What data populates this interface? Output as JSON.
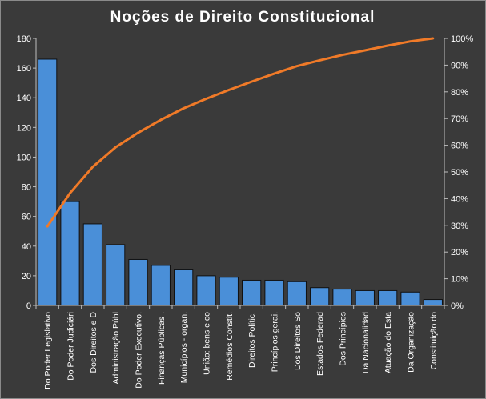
{
  "chart_data": {
    "type": "bar",
    "title": "Noções de Direito Constitucional",
    "xlabel": "",
    "ylabel": "",
    "ylim": [
      0,
      180
    ],
    "y_ticks": [
      0,
      20,
      40,
      60,
      80,
      100,
      120,
      140,
      160,
      180
    ],
    "y2lim": [
      0,
      100
    ],
    "y2_ticks": [
      "0%",
      "10%",
      "20%",
      "30%",
      "40%",
      "50%",
      "60%",
      "70%",
      "80%",
      "90%",
      "100%"
    ],
    "grid": false,
    "legend": "none",
    "categories": [
      "Do Poder Legislativo",
      "Do Poder Judiciári",
      "Dos Direitos e D",
      "Administração Públ",
      "Do Poder Executivo.",
      "Finanças Públicas .",
      "Municípios - organ.",
      "União: bens e co",
      "Remédios Constit.",
      "Direitos Polític.",
      "Princípios gerai.",
      "Dos Direitos So",
      "Estados Federad",
      "Dos Princípios",
      "Da Nacionalidad",
      "Atuação do Esta",
      "Da Organização",
      "Constituição do"
    ],
    "series": [
      {
        "type": "bar",
        "axis": "left",
        "color": "#4a8fd8",
        "values": [
          166,
          70,
          55,
          41,
          31,
          27,
          24,
          20,
          19,
          17,
          17,
          16,
          12,
          11,
          10,
          10,
          9,
          4
        ]
      },
      {
        "type": "line",
        "axis": "right",
        "color": "#f07a28",
        "values": [
          29.6,
          42.1,
          51.9,
          59.2,
          64.7,
          69.5,
          73.8,
          77.4,
          80.7,
          83.8,
          86.8,
          89.6,
          91.8,
          93.8,
          95.5,
          97.3,
          98.9,
          100.0
        ]
      }
    ]
  }
}
